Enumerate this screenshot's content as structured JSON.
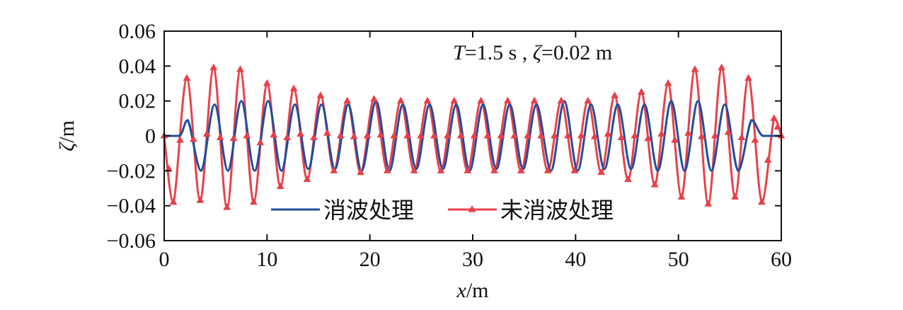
{
  "chart_data": {
    "type": "line",
    "annotation": "T=1.5 s , ζ=0.02 m",
    "annotation_parts": {
      "T": "T",
      "t_value": "=1.5 s , ",
      "zeta": "ζ",
      "zeta_value": "=0.02 m"
    },
    "xlabel": "x/m",
    "xlabel_parts": {
      "var": "x",
      "unit": "/m"
    },
    "ylabel": "ζ/m",
    "ylabel_parts": {
      "var": "ζ",
      "unit": "/m"
    },
    "xlim": [
      0,
      60
    ],
    "ylim": [
      -0.06,
      0.06
    ],
    "x_ticks": [
      0,
      10,
      20,
      30,
      40,
      50,
      60
    ],
    "x_tick_labels": [
      "0",
      "10",
      "20",
      "30",
      "40",
      "50",
      "60"
    ],
    "y_ticks": [
      0.06,
      0.04,
      0.02,
      0,
      -0.02,
      -0.04,
      -0.06
    ],
    "y_tick_labels": [
      "0.06",
      "0.04",
      "0.02",
      "0",
      "−0.02",
      "−0.04",
      "−0.06"
    ],
    "grid": false,
    "legend": {
      "placement": "bottom-center",
      "orientation": "horizontal"
    },
    "series": [
      {
        "name": "消波处理",
        "color": "#1f4e9c",
        "marker": "none",
        "x": [
          0,
          1.5,
          2.3,
          3.6,
          4.9,
          6.2,
          7.5,
          8.8,
          10.1,
          11.4,
          12.7,
          14,
          15.3,
          16.6,
          17.9,
          19.2,
          20.6,
          21.9,
          23.2,
          24.5,
          25.8,
          27.1,
          28.4,
          29.7,
          31,
          32.3,
          33.6,
          34.9,
          36.2,
          37.6,
          38.9,
          40.2,
          41.5,
          42.8,
          44.1,
          45.4,
          46.7,
          48,
          49.3,
          50.6,
          51.9,
          53.2,
          54.5,
          55.8,
          57.1,
          58.2,
          60
        ],
        "y": [
          0,
          0,
          0.009,
          -0.02,
          0.018,
          -0.02,
          0.02,
          -0.02,
          0.02,
          -0.02,
          0.018,
          -0.019,
          0.018,
          -0.019,
          0.018,
          -0.02,
          0.02,
          -0.02,
          0.018,
          -0.019,
          0.018,
          -0.019,
          0.018,
          -0.02,
          0.018,
          -0.019,
          0.018,
          -0.019,
          0.018,
          -0.02,
          0.02,
          -0.02,
          0.018,
          -0.019,
          0.018,
          -0.019,
          0.018,
          -0.02,
          0.02,
          -0.02,
          0.02,
          -0.02,
          0.018,
          -0.02,
          0.009,
          0,
          0
        ]
      },
      {
        "name": "未消波处理",
        "color": "#e8404a",
        "marker": "triangle",
        "x": [
          0,
          0.9,
          2.2,
          3.5,
          4.8,
          6.1,
          7.4,
          8.7,
          10,
          11.3,
          12.6,
          13.9,
          15.2,
          16.5,
          17.8,
          19.1,
          20.4,
          21.7,
          23,
          24.3,
          25.6,
          26.9,
          28.2,
          29.5,
          30.8,
          32.1,
          33.4,
          34.7,
          36,
          37.3,
          38.6,
          39.9,
          41.2,
          42.5,
          43.8,
          45.1,
          46.4,
          47.7,
          49,
          50.3,
          51.6,
          52.9,
          54.2,
          55.5,
          56.8,
          58.1,
          59.3,
          60
        ],
        "y": [
          0,
          -0.038,
          0.033,
          -0.037,
          0.039,
          -0.041,
          0.038,
          -0.038,
          0.03,
          -0.029,
          0.027,
          -0.025,
          0.023,
          -0.02,
          0.02,
          -0.021,
          0.021,
          -0.02,
          0.02,
          -0.02,
          0.02,
          -0.02,
          0.02,
          -0.02,
          0.02,
          -0.02,
          0.02,
          -0.02,
          0.02,
          -0.02,
          0.02,
          -0.02,
          0.02,
          -0.021,
          0.023,
          -0.025,
          0.025,
          -0.028,
          0.03,
          -0.035,
          0.038,
          -0.039,
          0.039,
          -0.035,
          0.033,
          -0.038,
          0.01,
          0
        ]
      }
    ]
  }
}
